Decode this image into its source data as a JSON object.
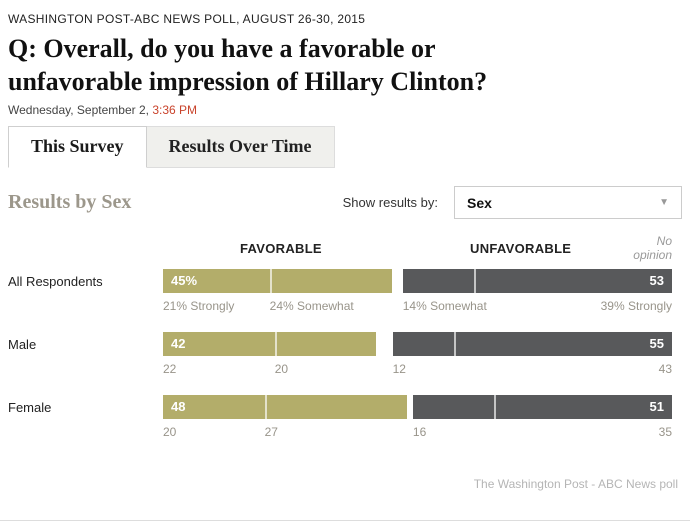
{
  "header": {
    "kicker": "WASHINGTON POST-ABC NEWS POLL, AUGUST 26-30, 2015",
    "question": "Q: Overall, do you have a favorable or unfavorable impression of Hillary Clinton?",
    "date": "Wednesday, September 2,",
    "time": "3:36 PM"
  },
  "tabs": {
    "this_survey": "This Survey",
    "results_over_time": "Results Over Time"
  },
  "controls": {
    "section_title": "Results by Sex",
    "show_results_label": "Show results by:",
    "dropdown_value": "Sex",
    "chevron_glyph": "▼"
  },
  "chart_data": {
    "type": "bar",
    "title": "Results by Sex",
    "orientation": "horizontal",
    "axis": {
      "unit": "percent",
      "range": [
        0,
        100
      ]
    },
    "legend": {
      "favorable": "FAVORABLE",
      "unfavorable": "UNFAVORABLE",
      "no_opinion": "No opinion"
    },
    "colors": {
      "favorable": "#b3ad6a",
      "unfavorable": "#58595b",
      "accent_red": "#c9432b"
    },
    "rows": [
      {
        "label": "All Respondents",
        "favorable": 45,
        "favorable_display": "45%",
        "favorable_strongly": 21,
        "favorable_somewhat": 24,
        "sub_favorable_strongly": "21% Strongly",
        "sub_favorable_somewhat": "24% Somewhat",
        "unfavorable": 53,
        "unfavorable_display": "53",
        "unfavorable_somewhat": 14,
        "unfavorable_strongly": 39,
        "sub_unfavorable_somewhat": "14% Somewhat",
        "sub_unfavorable_strongly": "39% Strongly"
      },
      {
        "label": "Male",
        "favorable": 42,
        "favorable_display": "42",
        "favorable_strongly": 22,
        "favorable_somewhat": 20,
        "sub_favorable_strongly": "22",
        "sub_favorable_somewhat": "20",
        "unfavorable": 55,
        "unfavorable_display": "55",
        "unfavorable_somewhat": 12,
        "unfavorable_strongly": 43,
        "sub_unfavorable_somewhat": "12",
        "sub_unfavorable_strongly": "43"
      },
      {
        "label": "Female",
        "favorable": 48,
        "favorable_display": "48",
        "favorable_strongly": 20,
        "favorable_somewhat": 27,
        "sub_favorable_strongly": "20",
        "sub_favorable_somewhat": "27",
        "unfavorable": 51,
        "unfavorable_display": "51",
        "unfavorable_somewhat": 16,
        "unfavorable_strongly": 35,
        "sub_unfavorable_somewhat": "16",
        "sub_unfavorable_strongly": "35"
      }
    ]
  },
  "footer": {
    "credit": "The Washington Post - ABC News poll"
  }
}
